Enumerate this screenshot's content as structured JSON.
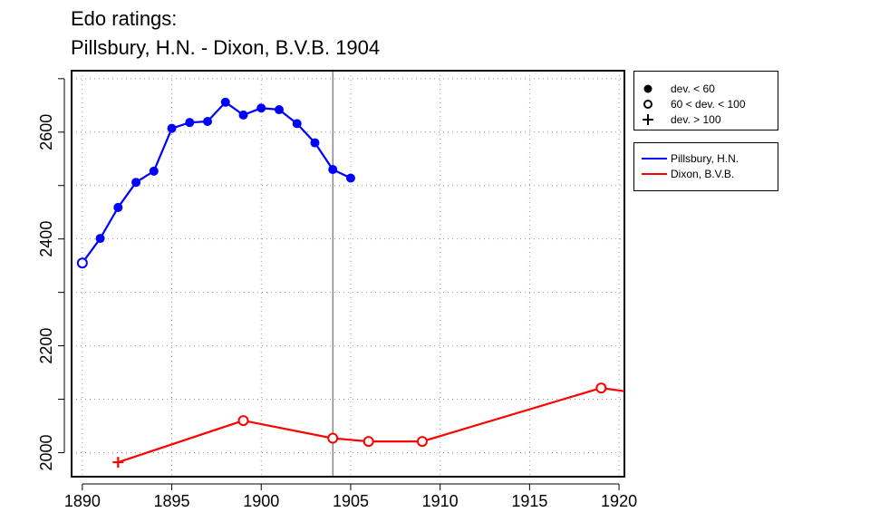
{
  "title_line1": "Edo ratings:",
  "title_line2": "Pillsbury, H.N. - Dixon, B.V.B. 1904",
  "legend_markers": [
    {
      "label": "dev. < 60",
      "marker": "filled-circle"
    },
    {
      "label": "60 < dev. < 100",
      "marker": "open-circle"
    },
    {
      "label": "dev. > 100",
      "marker": "plus"
    }
  ],
  "legend_series": [
    {
      "label": "Pillsbury, H.N.",
      "color": "#0000ff"
    },
    {
      "label": "Dixon, B.V.B.",
      "color": "#ff0000"
    }
  ],
  "chart_data": {
    "type": "line",
    "xlim": [
      1889.4,
      1920.3
    ],
    "ylim": [
      1955,
      2715
    ],
    "x_ticks": [
      1890,
      1895,
      1900,
      1905,
      1910,
      1915,
      1920
    ],
    "y_ticks": [
      2000,
      2200,
      2400,
      2600
    ],
    "x_grid": [
      1890,
      1895,
      1900,
      1905,
      1910,
      1915,
      1920
    ],
    "y_grid": [
      2000,
      2100,
      2200,
      2300,
      2400,
      2500,
      2600,
      2700
    ],
    "grid": true,
    "vline_x": 1904,
    "xlabel": "",
    "ylabel": "",
    "series": [
      {
        "name": "Pillsbury, H.N.",
        "color": "#0000ff",
        "points": [
          {
            "x": 1890,
            "y": 2355,
            "marker": "open-circle"
          },
          {
            "x": 1891,
            "y": 2401,
            "marker": "filled-circle"
          },
          {
            "x": 1892,
            "y": 2459,
            "marker": "filled-circle"
          },
          {
            "x": 1893,
            "y": 2506,
            "marker": "filled-circle"
          },
          {
            "x": 1894,
            "y": 2527,
            "marker": "filled-circle"
          },
          {
            "x": 1895,
            "y": 2607,
            "marker": "filled-circle"
          },
          {
            "x": 1896,
            "y": 2618,
            "marker": "filled-circle"
          },
          {
            "x": 1897,
            "y": 2620,
            "marker": "filled-circle"
          },
          {
            "x": 1898,
            "y": 2656,
            "marker": "filled-circle"
          },
          {
            "x": 1899,
            "y": 2632,
            "marker": "filled-circle"
          },
          {
            "x": 1900,
            "y": 2645,
            "marker": "filled-circle"
          },
          {
            "x": 1901,
            "y": 2642,
            "marker": "filled-circle"
          },
          {
            "x": 1902,
            "y": 2616,
            "marker": "filled-circle"
          },
          {
            "x": 1903,
            "y": 2580,
            "marker": "filled-circle"
          },
          {
            "x": 1904,
            "y": 2530,
            "marker": "filled-circle"
          },
          {
            "x": 1905,
            "y": 2514,
            "marker": "filled-circle"
          }
        ]
      },
      {
        "name": "Dixon, B.V.B.",
        "color": "#ff0000",
        "points": [
          {
            "x": 1892,
            "y": 1982,
            "marker": "plus"
          },
          {
            "x": 1899,
            "y": 2060,
            "marker": "open-circle"
          },
          {
            "x": 1904,
            "y": 2027,
            "marker": "open-circle"
          },
          {
            "x": 1906,
            "y": 2021,
            "marker": "open-circle"
          },
          {
            "x": 1909,
            "y": 2021,
            "marker": "open-circle"
          },
          {
            "x": 1919,
            "y": 2121,
            "marker": "open-circle"
          },
          {
            "x": 1920.3,
            "y": 2115,
            "marker": "none"
          }
        ]
      }
    ]
  }
}
